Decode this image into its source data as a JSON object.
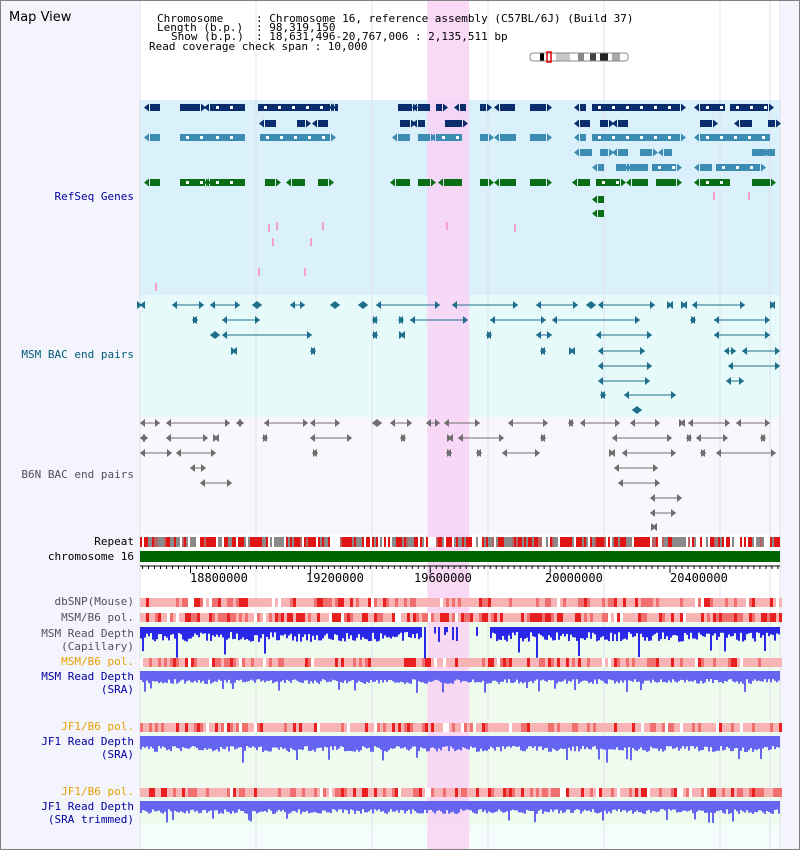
{
  "view_title": "Map View",
  "header": {
    "chromosome_key": "Chromosome",
    "chromosome_value": ": Chromosome 16, reference assembly (C57BL/6J) (Build 37)",
    "length_key": "Length (b.p.)",
    "length_value": ": 98,319,150",
    "show_key": "Show (b.p.)",
    "show_value": ": 18,631,496-20,767,006 : 2,135,511 bp",
    "coverage_line": "Read coverage check span : 10,000"
  },
  "tracks": {
    "refseq": "RefSeq Genes",
    "msm_bac": "MSM BAC end pairs",
    "b6n_bac": "B6N BAC end pairs",
    "repeat": "Repeat",
    "chromosome": "chromosome 16",
    "dbsnp": "dbSNP(Mouse)",
    "msm_b6_pol_1": "MSM/B6 pol.",
    "msm_depth_cap_1": "MSM Read Depth",
    "msm_depth_cap_2": "(Capillary)",
    "msm_b6_pol_2": "MSM/B6 pol.",
    "msm_depth_sra_1": "MSM Read Depth",
    "msm_depth_sra_2": "(SRA)",
    "jf1_b6_pol_1": "JF1/B6 pol.",
    "jf1_depth_sra_1": "JF1 Read Depth",
    "jf1_depth_sra_2": "(SRA)",
    "jf1_b6_pol_2": "JF1/B6 pol.",
    "jf1_depth_trim_1": "JF1 Read Depth",
    "jf1_depth_trim_2": "(SRA trimmed)"
  },
  "axis": {
    "range_bp": [
      18631496,
      20767006
    ],
    "ticks": [
      18800000,
      19200000,
      19600000,
      20000000,
      20400000
    ],
    "tick_labels": [
      "18800000",
      "19200000",
      "19600000",
      "20000000",
      "20400000"
    ]
  },
  "highlight_bp": [
    19590000,
    19730000
  ],
  "colors": {
    "refseq_bg": "#daf0fa",
    "msm_bac_bg": "#e6fafa",
    "b6n_bac_bg": "#f8f8fc",
    "highlight": "#f8d2f4",
    "gene_dark": "#0a2d6e",
    "gene_mid": "#3c8cb4",
    "gene_green": "#0a6e14",
    "msm_bac": "#1e6e8c",
    "b6n_bac": "#6e6e6e",
    "depth_blue": "#2828e6",
    "depth_light": "#6464f0",
    "label_black": "#000000",
    "label_navy": "#0000a0",
    "label_teal": "#005a78",
    "label_gray": "#505060",
    "label_orange": "#e6a000"
  }
}
